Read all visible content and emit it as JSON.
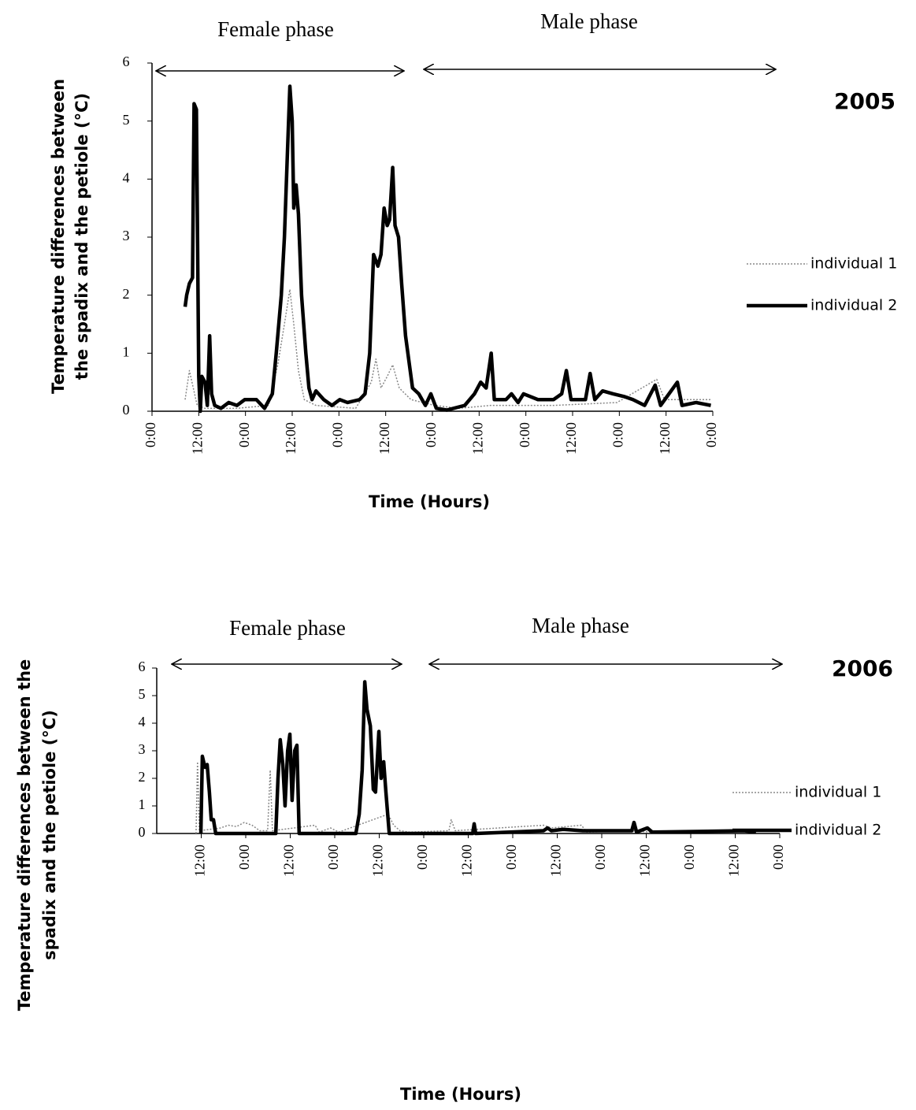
{
  "chart_data": [
    {
      "type": "line",
      "title": "2005",
      "annotations": [
        "Female phase",
        "Male phase"
      ],
      "x_label": "Time (Hours)",
      "y_label": [
        "Temperature differences between",
        "the spadix and the petiole (°C)"
      ],
      "xlim": [
        0,
        144
      ],
      "xticks": [
        {
          "value": 0,
          "label": "0:00"
        },
        {
          "value": 12,
          "label": "12:00"
        },
        {
          "value": 24,
          "label": "0:00"
        },
        {
          "value": 36,
          "label": "12:00"
        },
        {
          "value": 48,
          "label": "0:00"
        },
        {
          "value": 60,
          "label": "12:00"
        },
        {
          "value": 72,
          "label": "0:00"
        },
        {
          "value": 84,
          "label": "12:00"
        },
        {
          "value": 96,
          "label": "0:00"
        },
        {
          "value": 108,
          "label": "12:00"
        },
        {
          "value": 120,
          "label": "0:00"
        },
        {
          "value": 132,
          "label": "12:00"
        },
        {
          "value": 144,
          "label": "0:00"
        }
      ],
      "ylim": [
        0,
        6
      ],
      "yticks": [
        0,
        1,
        2,
        3,
        4,
        5,
        6
      ],
      "series": [
        {
          "name": "individual 1",
          "color": "#888888",
          "style": "dotted",
          "x": [
            8.5,
            9.6,
            10.6,
            11.6,
            13.6,
            21.8,
            29.9,
            32.3,
            34.0,
            35.4,
            36.4,
            37.6,
            39.1,
            42.1,
            52.3,
            56.3,
            57.5,
            58.8,
            60.4,
            61.8,
            63.5,
            66.5,
            72.6,
            78.7,
            86.9,
            103.1,
            119.4,
            129.6,
            131.6,
            139.7,
            143.5
          ],
          "values": [
            0.2,
            0.7,
            0.4,
            0.1,
            0.05,
            0.05,
            0.1,
            0.8,
            1.5,
            2.1,
            1.5,
            0.7,
            0.2,
            0.1,
            0.05,
            0.5,
            0.9,
            0.4,
            0.6,
            0.8,
            0.4,
            0.2,
            0.1,
            0.05,
            0.1,
            0.1,
            0.15,
            0.55,
            0.2,
            0.2,
            0.2
          ]
        },
        {
          "name": "individual 2",
          "color": "#000000",
          "style": "solid",
          "x": [
            8.5,
            8.9,
            9.6,
            10.4,
            10.8,
            11.4,
            12.0,
            12.4,
            12.8,
            13.6,
            14.2,
            14.8,
            15.3,
            16.1,
            17.7,
            19.7,
            21.8,
            23.8,
            26.8,
            28.9,
            30.9,
            31.9,
            33.2,
            34.0,
            34.8,
            35.4,
            36.0,
            36.4,
            37.0,
            37.6,
            38.4,
            39.5,
            40.3,
            41.1,
            42.1,
            44.1,
            46.2,
            48.2,
            50.2,
            53.3,
            54.7,
            55.9,
            56.9,
            58.0,
            58.8,
            59.6,
            60.4,
            61.0,
            61.8,
            62.4,
            63.3,
            64.1,
            65.1,
            66.1,
            66.9,
            68.5,
            70.2,
            71.6,
            73.0,
            75.7,
            80.3,
            82.8,
            84.4,
            85.8,
            87.1,
            87.9,
            90.9,
            92.3,
            94.0,
            95.4,
            99.1,
            103.1,
            105.2,
            106.4,
            107.6,
            111.3,
            112.5,
            113.7,
            115.7,
            118.4,
            121.4,
            123.5,
            126.5,
            129.2,
            130.6,
            134.9,
            136.1,
            139.7,
            143.5
          ],
          "values": [
            1.8,
            2.0,
            2.2,
            2.3,
            5.3,
            5.2,
            0.6,
            0.0,
            0.6,
            0.5,
            0.1,
            1.3,
            0.3,
            0.1,
            0.05,
            0.15,
            0.1,
            0.2,
            0.2,
            0.05,
            0.3,
            1.0,
            2.0,
            3.0,
            4.5,
            5.6,
            5.0,
            3.5,
            3.9,
            3.4,
            2.0,
            1.0,
            0.4,
            0.2,
            0.35,
            0.2,
            0.1,
            0.2,
            0.15,
            0.2,
            0.3,
            1.0,
            2.7,
            2.5,
            2.7,
            3.5,
            3.2,
            3.3,
            4.2,
            3.2,
            3.0,
            2.2,
            1.3,
            0.8,
            0.4,
            0.3,
            0.1,
            0.3,
            0.05,
            0.02,
            0.1,
            0.3,
            0.5,
            0.4,
            1.0,
            0.2,
            0.2,
            0.3,
            0.15,
            0.3,
            0.2,
            0.2,
            0.3,
            0.7,
            0.2,
            0.2,
            0.65,
            0.2,
            0.35,
            0.3,
            0.25,
            0.2,
            0.1,
            0.45,
            0.1,
            0.5,
            0.1,
            0.15,
            0.1
          ]
        }
      ]
    },
    {
      "type": "line",
      "title": "2006",
      "annotations": [
        "Female phase",
        "Male phase"
      ],
      "x_label": "Time (Hours)",
      "y_label": [
        "Temperature differences between the",
        "spadix and the petiole (°C)"
      ],
      "xlim": [
        0,
        168
      ],
      "xticks": [
        {
          "value": 12,
          "label": "12:00"
        },
        {
          "value": 24,
          "label": "0:00"
        },
        {
          "value": 36,
          "label": "12:00"
        },
        {
          "value": 48,
          "label": "0:00"
        },
        {
          "value": 60,
          "label": "12:00"
        },
        {
          "value": 72,
          "label": "0:00"
        },
        {
          "value": 84,
          "label": "12:00"
        },
        {
          "value": 96,
          "label": "0:00"
        },
        {
          "value": 108,
          "label": "12:00"
        },
        {
          "value": 120,
          "label": "0:00"
        },
        {
          "value": 132,
          "label": "12:00"
        },
        {
          "value": 144,
          "label": "0:00"
        },
        {
          "value": 156,
          "label": "12:00"
        },
        {
          "value": 168,
          "label": "0:00"
        }
      ],
      "ylim": [
        0,
        6
      ],
      "yticks": [
        0,
        1,
        2,
        3,
        4,
        5,
        6
      ],
      "series": [
        {
          "name": "individual 1",
          "color": "#888888",
          "style": "dotted",
          "x": [
            10.6,
            11.0,
            11.5,
            17.2,
            19.3,
            21.5,
            23.6,
            25.7,
            27.8,
            29.9,
            30.6,
            31.2,
            42.7,
            43.8,
            46.9,
            49.1,
            62.4,
            63.9,
            65.6,
            68.2,
            78.8,
            79.4,
            80.5,
            104.3,
            106.4,
            114.5,
            116.0,
            127.6,
            134.0
          ],
          "values": [
            0,
            2.6,
            0.1,
            0.2,
            0.3,
            0.25,
            0.4,
            0.3,
            0.1,
            0.1,
            2.3,
            0.1,
            0.3,
            0.05,
            0.2,
            0.05,
            0.7,
            0.3,
            0.1,
            0.05,
            0.1,
            0.5,
            0.1,
            0.3,
            0.2,
            0.3,
            0.05,
            0.1,
            0.05
          ]
        },
        {
          "name": "individual 2",
          "color": "#000000",
          "style": "solid",
          "x": [
            11.9,
            12.3,
            13.0,
            13.6,
            14.2,
            14.7,
            15.3,
            15.9,
            32.1,
            32.7,
            33.3,
            34.0,
            34.6,
            35.3,
            35.9,
            36.5,
            37.2,
            37.8,
            38.4,
            53.7,
            54.6,
            55.4,
            56.1,
            56.7,
            57.6,
            58.4,
            59.0,
            59.9,
            60.5,
            61.2,
            61.8,
            62.7,
            85.2,
            85.6,
            86.0,
            104.3,
            105.4,
            106.4,
            109.6,
            114.9,
            128.1,
            128.7,
            129.4,
            132.3,
            133.6,
            158.4,
            161.6
          ],
          "values": [
            0,
            2.8,
            2.4,
            2.5,
            1.5,
            0.5,
            0.5,
            0.0,
            0.0,
            2.0,
            3.4,
            2.5,
            1.0,
            3.0,
            3.6,
            1.2,
            3.0,
            3.2,
            0.0,
            0.0,
            0.7,
            2.3,
            5.5,
            4.5,
            3.9,
            1.6,
            1.5,
            3.7,
            2.0,
            2.6,
            1.5,
            0.0,
            0.0,
            0.35,
            0.0,
            0.1,
            0.2,
            0.1,
            0.15,
            0.1,
            0.1,
            0.4,
            0.05,
            0.2,
            0.05,
            0.1,
            0.05
          ]
        }
      ]
    }
  ]
}
